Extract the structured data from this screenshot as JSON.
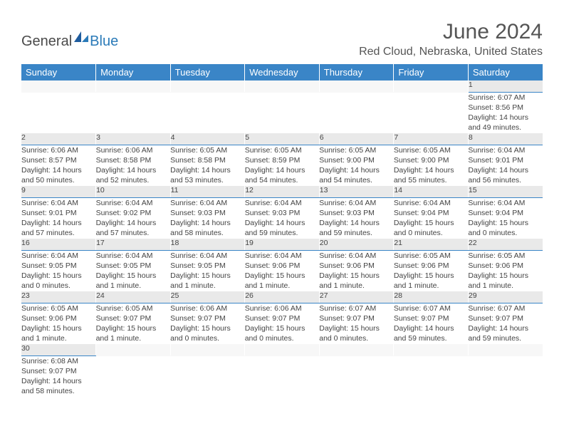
{
  "logo": {
    "general": "General",
    "blue": "Blue"
  },
  "title": "June 2024",
  "location": "Red Cloud, Nebraska, United States",
  "colors": {
    "header_bg": "#3a85c7",
    "header_fg": "#ffffff",
    "daynum_bg": "#e9e9e9",
    "daynum_border": "#3a85c7",
    "text": "#444444",
    "title_text": "#555555",
    "logo_blue": "#2a7ab8",
    "logo_gray": "#4a4a4a"
  },
  "weekdays": [
    "Sunday",
    "Monday",
    "Tuesday",
    "Wednesday",
    "Thursday",
    "Friday",
    "Saturday"
  ],
  "weeks": [
    [
      null,
      null,
      null,
      null,
      null,
      null,
      {
        "d": "1",
        "sr": "6:07 AM",
        "ss": "8:56 PM",
        "dl": "14 hours and 49 minutes."
      }
    ],
    [
      {
        "d": "2",
        "sr": "6:06 AM",
        "ss": "8:57 PM",
        "dl": "14 hours and 50 minutes."
      },
      {
        "d": "3",
        "sr": "6:06 AM",
        "ss": "8:58 PM",
        "dl": "14 hours and 52 minutes."
      },
      {
        "d": "4",
        "sr": "6:05 AM",
        "ss": "8:58 PM",
        "dl": "14 hours and 53 minutes."
      },
      {
        "d": "5",
        "sr": "6:05 AM",
        "ss": "8:59 PM",
        "dl": "14 hours and 54 minutes."
      },
      {
        "d": "6",
        "sr": "6:05 AM",
        "ss": "9:00 PM",
        "dl": "14 hours and 54 minutes."
      },
      {
        "d": "7",
        "sr": "6:05 AM",
        "ss": "9:00 PM",
        "dl": "14 hours and 55 minutes."
      },
      {
        "d": "8",
        "sr": "6:04 AM",
        "ss": "9:01 PM",
        "dl": "14 hours and 56 minutes."
      }
    ],
    [
      {
        "d": "9",
        "sr": "6:04 AM",
        "ss": "9:01 PM",
        "dl": "14 hours and 57 minutes."
      },
      {
        "d": "10",
        "sr": "6:04 AM",
        "ss": "9:02 PM",
        "dl": "14 hours and 57 minutes."
      },
      {
        "d": "11",
        "sr": "6:04 AM",
        "ss": "9:03 PM",
        "dl": "14 hours and 58 minutes."
      },
      {
        "d": "12",
        "sr": "6:04 AM",
        "ss": "9:03 PM",
        "dl": "14 hours and 59 minutes."
      },
      {
        "d": "13",
        "sr": "6:04 AM",
        "ss": "9:03 PM",
        "dl": "14 hours and 59 minutes."
      },
      {
        "d": "14",
        "sr": "6:04 AM",
        "ss": "9:04 PM",
        "dl": "15 hours and 0 minutes."
      },
      {
        "d": "15",
        "sr": "6:04 AM",
        "ss": "9:04 PM",
        "dl": "15 hours and 0 minutes."
      }
    ],
    [
      {
        "d": "16",
        "sr": "6:04 AM",
        "ss": "9:05 PM",
        "dl": "15 hours and 0 minutes."
      },
      {
        "d": "17",
        "sr": "6:04 AM",
        "ss": "9:05 PM",
        "dl": "15 hours and 1 minute."
      },
      {
        "d": "18",
        "sr": "6:04 AM",
        "ss": "9:05 PM",
        "dl": "15 hours and 1 minute."
      },
      {
        "d": "19",
        "sr": "6:04 AM",
        "ss": "9:06 PM",
        "dl": "15 hours and 1 minute."
      },
      {
        "d": "20",
        "sr": "6:04 AM",
        "ss": "9:06 PM",
        "dl": "15 hours and 1 minute."
      },
      {
        "d": "21",
        "sr": "6:05 AM",
        "ss": "9:06 PM",
        "dl": "15 hours and 1 minute."
      },
      {
        "d": "22",
        "sr": "6:05 AM",
        "ss": "9:06 PM",
        "dl": "15 hours and 1 minute."
      }
    ],
    [
      {
        "d": "23",
        "sr": "6:05 AM",
        "ss": "9:06 PM",
        "dl": "15 hours and 1 minute."
      },
      {
        "d": "24",
        "sr": "6:05 AM",
        "ss": "9:07 PM",
        "dl": "15 hours and 1 minute."
      },
      {
        "d": "25",
        "sr": "6:06 AM",
        "ss": "9:07 PM",
        "dl": "15 hours and 0 minutes."
      },
      {
        "d": "26",
        "sr": "6:06 AM",
        "ss": "9:07 PM",
        "dl": "15 hours and 0 minutes."
      },
      {
        "d": "27",
        "sr": "6:07 AM",
        "ss": "9:07 PM",
        "dl": "15 hours and 0 minutes."
      },
      {
        "d": "28",
        "sr": "6:07 AM",
        "ss": "9:07 PM",
        "dl": "14 hours and 59 minutes."
      },
      {
        "d": "29",
        "sr": "6:07 AM",
        "ss": "9:07 PM",
        "dl": "14 hours and 59 minutes."
      }
    ],
    [
      {
        "d": "30",
        "sr": "6:08 AM",
        "ss": "9:07 PM",
        "dl": "14 hours and 58 minutes."
      },
      null,
      null,
      null,
      null,
      null,
      null
    ]
  ],
  "labels": {
    "sunrise": "Sunrise:",
    "sunset": "Sunset:",
    "daylight": "Daylight:"
  }
}
